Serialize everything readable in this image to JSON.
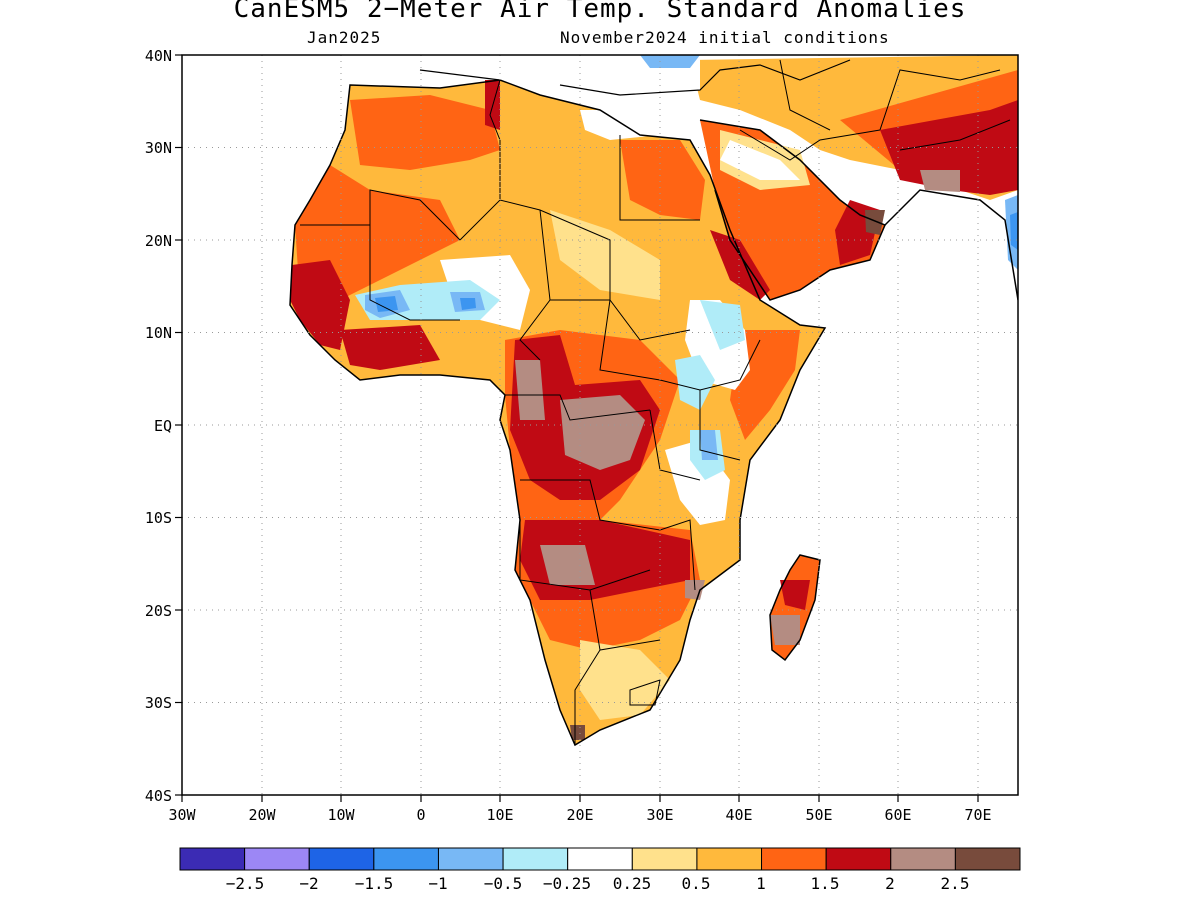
{
  "title": "CanESM5 2−Meter Air Temp. Standard Anomalies",
  "subtitle_left": "Jan2025",
  "subtitle_right": "November2024 initial conditions",
  "axes": {
    "lat_labels": [
      "40N",
      "30N",
      "20N",
      "10N",
      "EQ",
      "10S",
      "20S",
      "30S",
      "40S"
    ],
    "lon_labels": [
      "30W",
      "20W",
      "10W",
      "0",
      "10E",
      "20E",
      "30E",
      "40E",
      "50E",
      "60E",
      "70E"
    ],
    "lat_range": [
      -40,
      40
    ],
    "lon_range": [
      -30,
      75
    ],
    "grid": "dotted"
  },
  "colorbar": {
    "colors": [
      "#3b2bb4",
      "#9c87f5",
      "#1e64e6",
      "#3c95f0",
      "#78b8f5",
      "#b0ecf8",
      "#ffffff",
      "#ffe18c",
      "#ffb93c",
      "#ff6414",
      "#c00a14",
      "#b48c82",
      "#784b3c"
    ],
    "labels": [
      "−2.5",
      "−2",
      "−1.5",
      "−1",
      "−0.5",
      "−0.25",
      "0.25",
      "0.5",
      "1",
      "1.5",
      "2",
      "2.5"
    ]
  },
  "colors": {
    "land_outline": "#000000",
    "ocean": "#ffffff"
  }
}
